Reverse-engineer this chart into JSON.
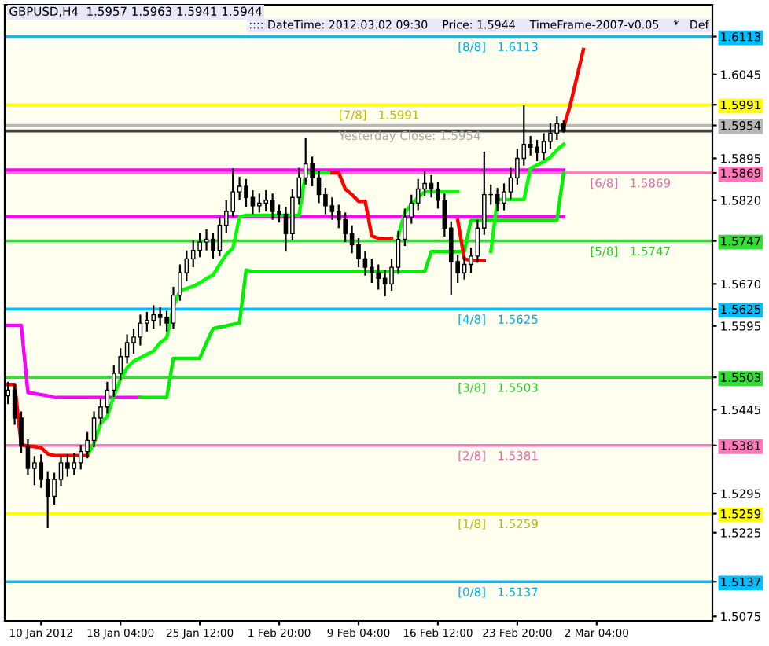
{
  "chart_data": {
    "type": "candlestick",
    "title": "GBPUSD,H4  1.5957 1.5963 1.5941 1.5944",
    "subtitle": ":::: DateTime: 2012.03.02 09:30    Price: 1.5944    TimeFrame-2007-v0.05    *   Def",
    "categories": [
      null,
      null,
      null,
      null,
      null,
      "10 Jan 2012",
      null,
      null,
      null,
      null,
      null,
      null,
      null,
      null,
      null,
      null,
      null,
      "18 Jan 04:00",
      null,
      null,
      null,
      null,
      null,
      null,
      null,
      null,
      null,
      null,
      null,
      "25 Jan 12:00",
      null,
      null,
      null,
      null,
      null,
      null,
      null,
      null,
      null,
      null,
      null,
      "1 Feb 20:00",
      null,
      null,
      null,
      null,
      null,
      null,
      null,
      null,
      null,
      null,
      null,
      "9 Feb 04:00",
      null,
      null,
      null,
      null,
      null,
      null,
      null,
      null,
      null,
      null,
      null,
      "16 Feb 12:00",
      null,
      null,
      null,
      null,
      null,
      null,
      null,
      null,
      null,
      null,
      null,
      "23 Feb 20:00",
      null,
      null,
      null,
      null,
      null,
      null,
      null,
      null,
      null,
      null,
      null,
      "2 Mar 04:00",
      null,
      null,
      null,
      null,
      null,
      null,
      null,
      null,
      null,
      null,
      null,
      null,
      null,
      null,
      null,
      null,
      null
    ],
    "ohlc": [
      [
        1.547,
        1.5495,
        1.5455,
        1.548
      ],
      [
        1.548,
        1.5492,
        1.5418,
        1.543
      ],
      [
        1.543,
        1.5442,
        1.5368,
        1.538
      ],
      [
        1.538,
        1.5392,
        1.5328,
        1.534
      ],
      [
        1.534,
        1.5362,
        1.531,
        1.535
      ],
      [
        1.535,
        1.5365,
        1.5305,
        1.532
      ],
      [
        1.532,
        1.5335,
        1.5233,
        1.529
      ],
      [
        1.529,
        1.5332,
        1.5275,
        1.532
      ],
      [
        1.532,
        1.5362,
        1.5308,
        1.535
      ],
      [
        1.535,
        1.5365,
        1.5325,
        1.534
      ],
      [
        1.534,
        1.5368,
        1.5328,
        1.535
      ],
      [
        1.535,
        1.5382,
        1.5338,
        1.537
      ],
      [
        1.537,
        1.5405,
        1.5358,
        1.539
      ],
      [
        1.539,
        1.5442,
        1.5378,
        1.543
      ],
      [
        1.543,
        1.5465,
        1.5418,
        1.545
      ],
      [
        1.545,
        1.5495,
        1.5438,
        1.548
      ],
      [
        1.548,
        1.5525,
        1.5468,
        1.551
      ],
      [
        1.551,
        1.5555,
        1.5498,
        1.554
      ],
      [
        1.554,
        1.558,
        1.5528,
        1.5565
      ],
      [
        1.5565,
        1.559,
        1.5545,
        1.5575
      ],
      [
        1.5575,
        1.5615,
        1.556,
        1.56
      ],
      [
        1.56,
        1.562,
        1.5585,
        1.5605
      ],
      [
        1.5605,
        1.5632,
        1.559,
        1.5615
      ],
      [
        1.5615,
        1.5628,
        1.5595,
        1.561
      ],
      [
        1.561,
        1.5622,
        1.5585,
        1.56
      ],
      [
        1.56,
        1.5665,
        1.559,
        1.565
      ],
      [
        1.565,
        1.5705,
        1.564,
        1.569
      ],
      [
        1.569,
        1.573,
        1.5675,
        1.5715
      ],
      [
        1.5715,
        1.5748,
        1.57,
        1.573
      ],
      [
        1.573,
        1.5762,
        1.5718,
        1.5745
      ],
      [
        1.5745,
        1.5768,
        1.573,
        1.575
      ],
      [
        1.575,
        1.5762,
        1.5715,
        1.573
      ],
      [
        1.573,
        1.579,
        1.572,
        1.5775
      ],
      [
        1.5775,
        1.582,
        1.5762,
        1.58
      ],
      [
        1.58,
        1.5877,
        1.579,
        1.5835
      ],
      [
        1.5835,
        1.5862,
        1.582,
        1.5845
      ],
      [
        1.5845,
        1.5858,
        1.5808,
        1.5825
      ],
      [
        1.5825,
        1.5838,
        1.5795,
        1.581
      ],
      [
        1.581,
        1.5832,
        1.5798,
        1.5815
      ],
      [
        1.5815,
        1.5838,
        1.58,
        1.582
      ],
      [
        1.582,
        1.5832,
        1.5785,
        1.58
      ],
      [
        1.58,
        1.5812,
        1.578,
        1.5795
      ],
      [
        1.5795,
        1.5808,
        1.5728,
        1.576
      ],
      [
        1.576,
        1.584,
        1.5748,
        1.5825
      ],
      [
        1.5825,
        1.5878,
        1.5812,
        1.586
      ],
      [
        1.586,
        1.5931,
        1.5848,
        1.5885
      ],
      [
        1.5885,
        1.5898,
        1.5845,
        1.586
      ],
      [
        1.586,
        1.5872,
        1.5815,
        1.583
      ],
      [
        1.583,
        1.5842,
        1.5795,
        1.581
      ],
      [
        1.581,
        1.5825,
        1.5785,
        1.58
      ],
      [
        1.58,
        1.5812,
        1.577,
        1.5785
      ],
      [
        1.5785,
        1.5798,
        1.5745,
        1.576
      ],
      [
        1.576,
        1.5775,
        1.5725,
        1.574
      ],
      [
        1.574,
        1.5752,
        1.57,
        1.5715
      ],
      [
        1.5715,
        1.5728,
        1.5685,
        1.57
      ],
      [
        1.57,
        1.5715,
        1.5672,
        1.569
      ],
      [
        1.569,
        1.5705,
        1.566,
        1.568
      ],
      [
        1.568,
        1.5695,
        1.5648,
        1.567
      ],
      [
        1.567,
        1.5715,
        1.5658,
        1.57
      ],
      [
        1.57,
        1.5765,
        1.5688,
        1.575
      ],
      [
        1.575,
        1.5805,
        1.5738,
        1.579
      ],
      [
        1.579,
        1.583,
        1.5778,
        1.5815
      ],
      [
        1.5815,
        1.5858,
        1.5802,
        1.584
      ],
      [
        1.584,
        1.5872,
        1.5828,
        1.585
      ],
      [
        1.585,
        1.5865,
        1.5825,
        1.584
      ],
      [
        1.584,
        1.5852,
        1.5805,
        1.582
      ],
      [
        1.582,
        1.5832,
        1.5755,
        1.577
      ],
      [
        1.577,
        1.5782,
        1.565,
        1.571
      ],
      [
        1.571,
        1.5722,
        1.5672,
        1.569
      ],
      [
        1.569,
        1.572,
        1.5678,
        1.5705
      ],
      [
        1.5705,
        1.5735,
        1.569,
        1.572
      ],
      [
        1.572,
        1.5785,
        1.5708,
        1.577
      ],
      [
        1.577,
        1.5907,
        1.5758,
        1.583
      ],
      [
        1.583,
        1.5848,
        1.5812,
        1.583
      ],
      [
        1.583,
        1.5842,
        1.58,
        1.5815
      ],
      [
        1.5815,
        1.585,
        1.5802,
        1.5835
      ],
      [
        1.5835,
        1.5878,
        1.5822,
        1.586
      ],
      [
        1.586,
        1.5912,
        1.5848,
        1.5895
      ],
      [
        1.5895,
        1.599,
        1.5882,
        1.592
      ],
      [
        1.592,
        1.5935,
        1.59,
        1.5915
      ],
      [
        1.5915,
        1.5928,
        1.589,
        1.5905
      ],
      [
        1.5905,
        1.594,
        1.5892,
        1.5925
      ],
      [
        1.5925,
        1.5958,
        1.5912,
        1.594
      ],
      [
        1.594,
        1.597,
        1.5928,
        1.5957
      ],
      [
        1.5957,
        1.5963,
        1.5941,
        1.5944
      ],
      null,
      null,
      null,
      null,
      null,
      null,
      null,
      null,
      null,
      null,
      null,
      null,
      null,
      null,
      null,
      null,
      null,
      null,
      null,
      null,
      null,
      null
    ],
    "series": [
      {
        "type": "line",
        "color": "#ff00ff",
        "values": [
          1.5596,
          1.5596,
          1.5596,
          1.5476,
          1.5474,
          1.5472,
          1.547,
          1.5467,
          1.5467,
          1.5467,
          1.5467,
          1.5467,
          1.5467,
          1.5467,
          1.5467,
          1.5467,
          1.5467,
          1.5467,
          1.5467,
          1.5467,
          1.5467,
          null,
          null,
          null,
          null,
          null,
          null,
          null,
          null,
          null,
          null,
          null,
          null,
          null,
          null,
          null,
          null,
          null,
          null,
          null,
          null,
          null,
          null,
          null,
          null,
          null,
          null,
          null,
          null,
          null,
          null,
          null,
          null,
          null,
          null,
          null,
          null,
          null,
          null,
          null,
          null,
          null,
          null,
          null,
          null,
          null,
          null,
          null,
          null,
          null,
          null,
          null,
          null,
          null,
          null,
          null,
          null,
          null,
          null,
          null,
          null,
          null,
          null,
          null,
          null,
          null,
          null,
          null,
          null,
          null,
          null,
          null,
          null,
          null,
          null,
          null,
          null,
          null,
          null,
          null,
          null,
          null,
          null,
          null,
          null,
          null,
          null
        ]
      },
      {
        "type": "line",
        "color": "#ff00ff",
        "values": [
          1.5874,
          1.5874,
          1.5874,
          1.5874,
          1.5874,
          1.5874,
          1.5874,
          1.5874,
          1.5874,
          1.5874,
          1.5874,
          1.5874,
          1.5874,
          1.5874,
          1.5874,
          1.5874,
          1.5874,
          1.5874,
          1.5874,
          1.5874,
          1.5874,
          1.5874,
          1.5874,
          1.5874,
          1.5874,
          1.5874,
          1.5874,
          1.5874,
          1.5874,
          1.5874,
          1.5874,
          1.5874,
          1.5874,
          1.5874,
          1.5874,
          1.5874,
          1.5874,
          1.5874,
          1.5874,
          1.5874,
          1.5874,
          1.5874,
          1.5874,
          1.5874,
          1.5874,
          1.5874,
          1.5874,
          1.5874,
          1.5874,
          1.5874,
          1.5874,
          1.5874,
          1.5874,
          1.5874,
          1.5874,
          1.5874,
          1.5874,
          1.5874,
          1.5874,
          1.5874,
          1.5874,
          1.5874,
          1.5874,
          1.5874,
          1.5874,
          1.5874,
          1.5874,
          1.5874,
          1.5874,
          1.5874,
          1.5874,
          1.5874,
          1.5874,
          1.5874,
          1.5874,
          1.5874,
          1.5874,
          1.5874,
          1.5874,
          1.5874,
          1.5874,
          1.5874,
          1.5874,
          1.5874,
          1.5874,
          null,
          null,
          null,
          null,
          null,
          null,
          null,
          null,
          null,
          null,
          null,
          null,
          null,
          null,
          null,
          null,
          null,
          null,
          null,
          null,
          null,
          null
        ]
      },
      {
        "type": "line",
        "color": "#ff00ff",
        "values": [
          1.579,
          1.579,
          1.579,
          1.579,
          1.579,
          1.579,
          1.579,
          1.579,
          1.579,
          1.579,
          1.579,
          1.579,
          1.579,
          1.579,
          1.579,
          1.579,
          1.579,
          1.579,
          1.579,
          1.579,
          1.579,
          1.579,
          1.579,
          1.579,
          1.579,
          1.579,
          1.579,
          1.579,
          1.579,
          1.579,
          1.579,
          1.579,
          1.579,
          1.579,
          1.579,
          1.579,
          1.579,
          1.579,
          1.579,
          1.579,
          1.579,
          1.579,
          1.579,
          1.579,
          1.579,
          1.579,
          1.579,
          1.579,
          1.579,
          1.579,
          1.579,
          1.579,
          1.579,
          1.579,
          1.579,
          1.579,
          1.579,
          1.579,
          1.579,
          1.579,
          1.579,
          1.579,
          1.579,
          1.579,
          1.579,
          1.579,
          1.579,
          1.579,
          1.579,
          1.579,
          1.579,
          1.579,
          1.579,
          1.579,
          1.579,
          1.579,
          1.579,
          1.579,
          1.579,
          1.579,
          1.579,
          1.579,
          1.579,
          1.579,
          1.579,
          null,
          null,
          null,
          null,
          null,
          null,
          null,
          null,
          null,
          null,
          null,
          null,
          null,
          null,
          null,
          null,
          null,
          null,
          null,
          null,
          null,
          null
        ]
      },
      {
        "type": "line",
        "color": "#00ee00",
        "values": [
          null,
          null,
          null,
          null,
          null,
          null,
          null,
          null,
          null,
          null,
          null,
          null,
          null,
          null,
          null,
          null,
          null,
          null,
          null,
          null,
          1.5467,
          1.5467,
          1.5467,
          1.5467,
          1.5467,
          1.5537,
          1.5537,
          1.5537,
          1.5537,
          1.5537,
          1.5565,
          1.559,
          1.5593,
          1.5595,
          1.5598,
          1.56,
          1.5695,
          1.5692,
          1.5692,
          1.5692,
          1.5692,
          1.5692,
          1.5692,
          1.5692,
          1.5692,
          1.5692,
          1.5692,
          1.5692,
          1.5692,
          1.5692,
          1.5692,
          1.5692,
          1.5692,
          1.5692,
          1.5692,
          1.5692,
          1.5692,
          1.5692,
          1.5692,
          1.5692,
          1.5692,
          1.5692,
          1.5692,
          1.5692,
          1.5728,
          1.5728,
          1.5728,
          1.5728,
          1.5728,
          1.5728,
          1.5784,
          1.5784,
          1.5784,
          1.5784,
          1.5784,
          1.5784,
          1.5784,
          1.5784,
          1.5784,
          1.5784,
          1.5784,
          1.5784,
          1.5784,
          1.5784,
          1.5869,
          null,
          null,
          null,
          null,
          null,
          null,
          null,
          null,
          null,
          null,
          null,
          null,
          null,
          null,
          null,
          null,
          null,
          null,
          null,
          null,
          null,
          null
        ]
      },
      {
        "type": "line",
        "color": "#00ff00",
        "values": [
          null,
          null,
          null,
          null,
          null,
          null,
          null,
          null,
          null,
          null,
          null,
          null,
          1.5363,
          1.5385,
          1.542,
          1.5433,
          1.547,
          1.55,
          1.552,
          1.5532,
          1.5538,
          1.5544,
          1.555,
          1.5565,
          1.5574,
          1.563,
          1.5658,
          1.5662,
          1.5666,
          1.5672,
          1.568,
          1.5686,
          1.5705,
          1.5723,
          1.5734,
          1.579,
          1.5793,
          1.5793,
          1.5793,
          1.5793,
          1.5793,
          1.5793,
          1.5793,
          1.5793,
          1.5793,
          1.5869,
          1.5869,
          1.5869,
          1.5869,
          1.5869,
          null,
          null,
          null,
          null,
          null,
          null,
          null,
          null,
          null,
          1.5756,
          1.5799,
          1.5812,
          1.5825,
          1.5835,
          1.5835,
          1.5835,
          1.5835,
          1.5835,
          1.5835,
          null,
          null,
          null,
          null,
          1.5728,
          1.5821,
          1.5821,
          1.5821,
          1.5821,
          1.5821,
          1.5877,
          1.5883,
          1.5889,
          1.5897,
          1.591,
          1.592,
          null,
          null,
          null,
          null,
          null,
          null,
          null,
          null,
          null,
          null,
          null,
          null,
          null,
          null,
          null,
          null,
          null,
          null,
          null,
          null,
          null,
          null
        ]
      },
      {
        "type": "line",
        "color": "#ff0000",
        "values": [
          1.549,
          1.549,
          1.5382,
          1.538,
          1.5379,
          1.5377,
          1.5366,
          1.5363,
          1.5363,
          1.5363,
          1.5363,
          1.5363,
          1.5363,
          null,
          null,
          null,
          null,
          null,
          null,
          null,
          null,
          null,
          null,
          null,
          null,
          null,
          null,
          null,
          null,
          null,
          null,
          null,
          null,
          null,
          null,
          null,
          null,
          null,
          null,
          null,
          null,
          null,
          null,
          null,
          null,
          null,
          null,
          null,
          null,
          1.5869,
          1.5869,
          1.584,
          1.583,
          1.5818,
          1.5818,
          1.5756,
          1.5752,
          1.5752,
          1.5752,
          null,
          null,
          null,
          null,
          null,
          null,
          null,
          null,
          null,
          1.5784,
          1.5715,
          1.5712,
          1.5712,
          1.5712,
          null,
          null,
          null,
          null,
          null,
          null,
          null,
          null,
          null,
          null,
          null,
          1.595,
          1.599,
          1.604,
          1.609,
          null,
          null,
          null,
          null,
          null,
          null,
          null,
          null,
          null,
          null,
          null,
          null,
          null,
          null,
          null,
          null,
          null,
          null,
          null
        ]
      }
    ],
    "ref_lines": [
      {
        "axis": "y",
        "value": 1.6113,
        "label": "[8/8]   1.6113",
        "color": "#00bfff"
      },
      {
        "axis": "y",
        "value": 1.5991,
        "label": "[7/8]   1.5991",
        "color": "#ffff00"
      },
      {
        "axis": "y",
        "value": 1.5869,
        "label": "[6/8]   1.5869",
        "color": "#ff77bb"
      },
      {
        "axis": "y",
        "value": 1.5747,
        "label": "[5/8]   1.5747",
        "color": "#33dd33"
      },
      {
        "axis": "y",
        "value": 1.5625,
        "label": "[4/8]   1.5625",
        "color": "#00bfff"
      },
      {
        "axis": "y",
        "value": 1.5503,
        "label": "[3/8]   1.5503",
        "color": "#33dd33"
      },
      {
        "axis": "y",
        "value": 1.5381,
        "label": "[2/8]   1.5381",
        "color": "#ff77bb"
      },
      {
        "axis": "y",
        "value": 1.5259,
        "label": "[1/8]   1.5259",
        "color": "#ffff00"
      },
      {
        "axis": "y",
        "value": 1.5137,
        "label": "[0/8]   1.5137",
        "color": "#00bfff"
      },
      {
        "axis": "y",
        "value": 1.5954,
        "label": "Yesterday Close: 1.5954",
        "color": "#b8b8b8"
      },
      {
        "axis": "y",
        "value": 1.5944,
        "label": null,
        "color": "#404040"
      }
    ],
    "ylim": [
      1.5067,
      1.617
    ],
    "yticks": [
      1.6113,
      1.6045,
      1.5991,
      1.5954,
      1.5895,
      1.5869,
      {
        "value": 1.582,
        "label": "1.5820"
      },
      1.5747,
      {
        "value": 1.567,
        "label": "1.5670"
      },
      1.5625,
      1.5595,
      1.5503,
      1.5445,
      1.5381,
      1.5295,
      1.5259,
      1.5225,
      1.5137,
      1.5075
    ]
  }
}
